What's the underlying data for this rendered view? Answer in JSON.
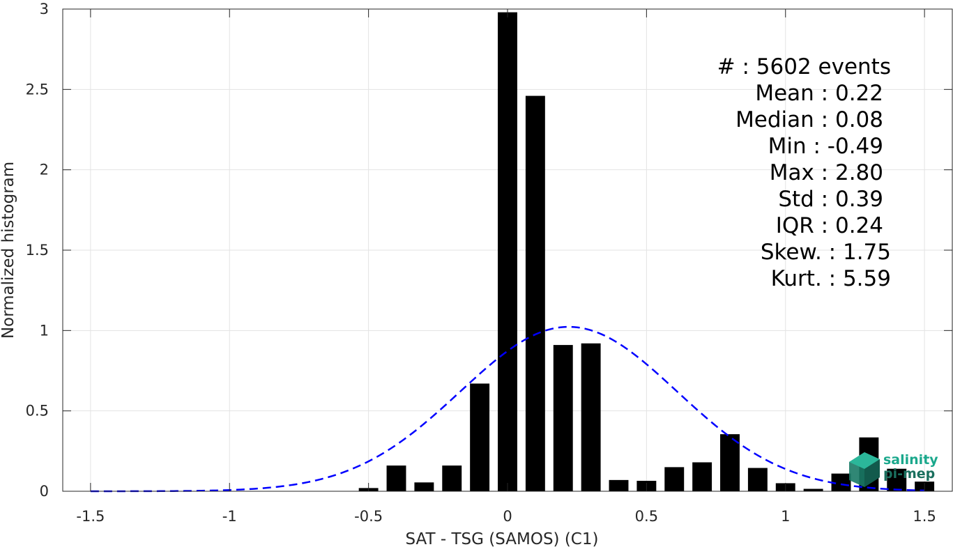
{
  "chart_data": {
    "type": "bar",
    "xlabel": "SAT - TSG (SAMOS) (C1)",
    "ylabel": "Normalized histogram",
    "xlim": [
      -1.6,
      1.6
    ],
    "ylim": [
      0,
      3
    ],
    "grid": true,
    "x_ticks": [
      -1.5,
      -1,
      -0.5,
      0,
      0.5,
      1,
      1.5
    ],
    "x_tick_labels": [
      "-1.5",
      "-1",
      "-0.5",
      "0",
      "0.5",
      "1",
      "1.5"
    ],
    "y_ticks": [
      0,
      0.5,
      1,
      1.5,
      2,
      2.5,
      3
    ],
    "y_tick_labels": [
      "0",
      "0.5",
      "1",
      "1.5",
      "2",
      "2.5",
      "3"
    ],
    "bin_width": 0.1,
    "bar_width": 0.07,
    "series": [
      {
        "kind": "histogram",
        "color": "#000000",
        "x": [
          -0.5,
          -0.4,
          -0.3,
          -0.2,
          -0.1,
          0.0,
          0.1,
          0.2,
          0.3,
          0.4,
          0.5,
          0.6,
          0.7,
          0.8,
          0.9,
          1.0,
          1.1,
          1.2,
          1.3,
          1.4,
          1.5
        ],
        "values": [
          0.02,
          0.16,
          0.055,
          0.16,
          0.67,
          2.98,
          2.46,
          0.91,
          0.92,
          0.07,
          0.065,
          0.15,
          0.18,
          0.355,
          0.145,
          0.05,
          0.015,
          0.11,
          0.335,
          0.14,
          0.06
        ]
      },
      {
        "kind": "gaussian-fit",
        "color": "#0000ff",
        "style": "dashed",
        "mean": 0.22,
        "std": 0.39,
        "x_range": [
          -1.5,
          1.5
        ]
      }
    ],
    "annotations": {
      "stats": [
        {
          "label": "#  : 5602 events"
        },
        {
          "label": "Mean : 0.22"
        },
        {
          "label": "Median : 0.08"
        },
        {
          "label": "Min : -0.49"
        },
        {
          "label": "Max : 2.80"
        },
        {
          "label": "Std : 0.39"
        },
        {
          "label": "IQR : 0.24"
        },
        {
          "label": "Skew. : 1.75"
        },
        {
          "label": "Kurt. : 5.59"
        }
      ],
      "logo": {
        "line1": "salinity",
        "line2": "pi-mep"
      }
    }
  }
}
